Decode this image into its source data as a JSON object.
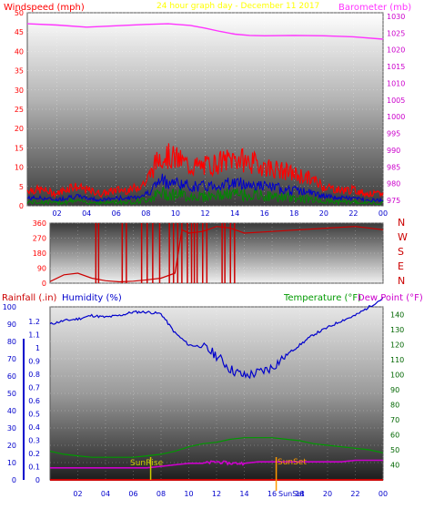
{
  "colors": {
    "windspeed": "#ff0000",
    "barometer": "#ff33ff",
    "title": "#ffff00",
    "humidity": "#0000cc",
    "rainfall": "#cc0000",
    "temperature": "#009900",
    "dewpoint": "#cc00cc",
    "sun": "#cccc00",
    "sunset": "#ff9900",
    "direction": "#cc0000",
    "axis_right_top": "#cc00cc",
    "axis_right_bottom": "#006600"
  },
  "panel_top": {
    "left_title": "Windspeed (mph)",
    "center_title": "24 hour graph day - December 11 2017",
    "right_title": "Barometer (mb)"
  },
  "panel_bottom": {
    "rain_title": "Rainfall (.in)",
    "humidity_title": "Humidity (%)",
    "temp_title": "Temperature (°F)",
    "dew_title": "Dew Point (°F)",
    "sunrise_label": "SunRise",
    "sunset_label": "SunSet",
    "sunset_axis_label": "SunSet"
  },
  "direction_letters": [
    "N",
    "W",
    "S",
    "E",
    "N"
  ],
  "chart_data": [
    {
      "type": "line",
      "title": "24 hour graph day - December 11 2017",
      "ylabel": "Windspeed (mph)",
      "y2label": "Barometer (mb)",
      "ylim": [
        0,
        50
      ],
      "y2lim": [
        975,
        1030
      ],
      "xlim": [
        0,
        24
      ],
      "x_ticks": [
        "02",
        "04",
        "06",
        "08",
        "10",
        "12",
        "14",
        "16",
        "18",
        "20",
        "22",
        "00"
      ],
      "y_ticks": [
        "0",
        "5",
        "10",
        "15",
        "20",
        "25",
        "30",
        "35",
        "40",
        "45",
        "50"
      ],
      "y2_ticks": [
        "975",
        "980",
        "985",
        "990",
        "995",
        "1000",
        "1005",
        "1010",
        "1015",
        "1020",
        "1025",
        "1030"
      ],
      "series": [
        {
          "name": "Windspeed (mph)",
          "x": [
            0,
            1,
            2,
            3,
            4,
            5,
            6,
            7,
            8,
            9,
            10,
            11,
            12,
            13,
            14,
            15,
            16,
            17,
            18,
            19,
            20,
            21,
            22,
            23,
            24
          ],
          "values": [
            4,
            4,
            3,
            5,
            4,
            3,
            4,
            4,
            6,
            13,
            12,
            10,
            10,
            11,
            12,
            11,
            10,
            9,
            8,
            7,
            5,
            4,
            4,
            3,
            3
          ]
        },
        {
          "name": "Barometer (mb)",
          "x": [
            0,
            2,
            4,
            6,
            8,
            9.5,
            11,
            12,
            13,
            14,
            15,
            16,
            18,
            20,
            22,
            24
          ],
          "values": [
            1027.8,
            1027.4,
            1026.8,
            1027.2,
            1027.6,
            1027.8,
            1027.3,
            1026.5,
            1025.5,
            1024.7,
            1024.3,
            1024.2,
            1024.3,
            1024.2,
            1023.9,
            1023.2
          ]
        }
      ]
    },
    {
      "type": "line",
      "ylabel": "",
      "ylim": [
        0,
        360
      ],
      "xlim": [
        0,
        24
      ],
      "y_ticks": [
        "0",
        "90",
        "180",
        "270",
        "360"
      ],
      "series": [
        {
          "name": "Wind direction",
          "x": [
            0,
            1,
            2,
            3,
            4,
            5,
            6,
            7,
            8,
            9,
            9.5,
            10,
            11,
            12,
            13,
            14,
            16,
            18,
            20,
            22,
            24
          ],
          "values": [
            10,
            50,
            60,
            30,
            15,
            8,
            12,
            20,
            30,
            60,
            320,
            300,
            310,
            340,
            330,
            300,
            310,
            320,
            330,
            340,
            320
          ]
        }
      ]
    },
    {
      "type": "line",
      "ylabel": "Humidity (%)",
      "y2label": "Temperature (°F)",
      "ylim": [
        0,
        100
      ],
      "y2lim": [
        30,
        145
      ],
      "rain_lim": [
        0,
        1.2
      ],
      "xlim": [
        0,
        24
      ],
      "x_ticks": [
        "02",
        "04",
        "06",
        "08",
        "10",
        "12",
        "14",
        "16",
        "18",
        "20",
        "22",
        "00"
      ],
      "humidity_ticks": [
        "0",
        "10",
        "20",
        "30",
        "40",
        "50",
        "60",
        "70",
        "80",
        "90",
        "100"
      ],
      "rain_ticks": [
        "0",
        "0.1",
        "0.2",
        "0.3",
        "0.4",
        "0.5",
        "0.6",
        "0.7",
        "0.8",
        "0.9",
        "1",
        "1.1",
        "1.2"
      ],
      "y2_ticks": [
        "40",
        "50",
        "60",
        "70",
        "80",
        "90",
        "100",
        "110",
        "120",
        "130",
        "140"
      ],
      "series": [
        {
          "name": "Humidity (%)",
          "x": [
            0,
            1,
            2,
            3,
            4,
            5,
            6,
            7,
            8,
            9,
            10,
            11,
            12,
            13,
            14,
            15,
            16,
            17,
            18,
            19,
            20,
            21,
            22,
            23,
            24
          ],
          "values": [
            90,
            92,
            93,
            95,
            94,
            95,
            97,
            97,
            96,
            85,
            78,
            77,
            72,
            64,
            60,
            62,
            65,
            72,
            78,
            84,
            88,
            92,
            95,
            100,
            105
          ]
        },
        {
          "name": "Temperature (°F)",
          "x": [
            0,
            1,
            2,
            3,
            4,
            5,
            6,
            7,
            8,
            9,
            10,
            11,
            12,
            13,
            14,
            15,
            16,
            17,
            18,
            19,
            20,
            21,
            22,
            23,
            24
          ],
          "values": [
            49,
            47,
            46,
            45,
            45,
            45,
            45,
            46,
            47,
            49,
            52,
            54,
            55,
            57,
            58,
            58,
            58,
            57,
            56,
            54,
            53,
            52,
            51,
            50,
            48
          ]
        },
        {
          "name": "Dew Point (°F)",
          "x": [
            0,
            1,
            2,
            3,
            4,
            5,
            6,
            7,
            8,
            9,
            10,
            11,
            12,
            13,
            14,
            15,
            16,
            17,
            18,
            19,
            20,
            21,
            22,
            23,
            24
          ],
          "values": [
            38,
            38,
            38,
            38,
            38,
            38,
            38,
            38,
            39,
            40,
            41,
            41,
            42,
            41,
            41,
            42,
            42,
            42,
            42,
            42,
            42,
            42,
            43,
            43,
            43
          ]
        },
        {
          "name": "Rainfall (.in)",
          "x": [
            0,
            24
          ],
          "values": [
            0,
            0
          ]
        }
      ],
      "sunrise_x": 7.25,
      "sunset_x": 16.3
    }
  ]
}
